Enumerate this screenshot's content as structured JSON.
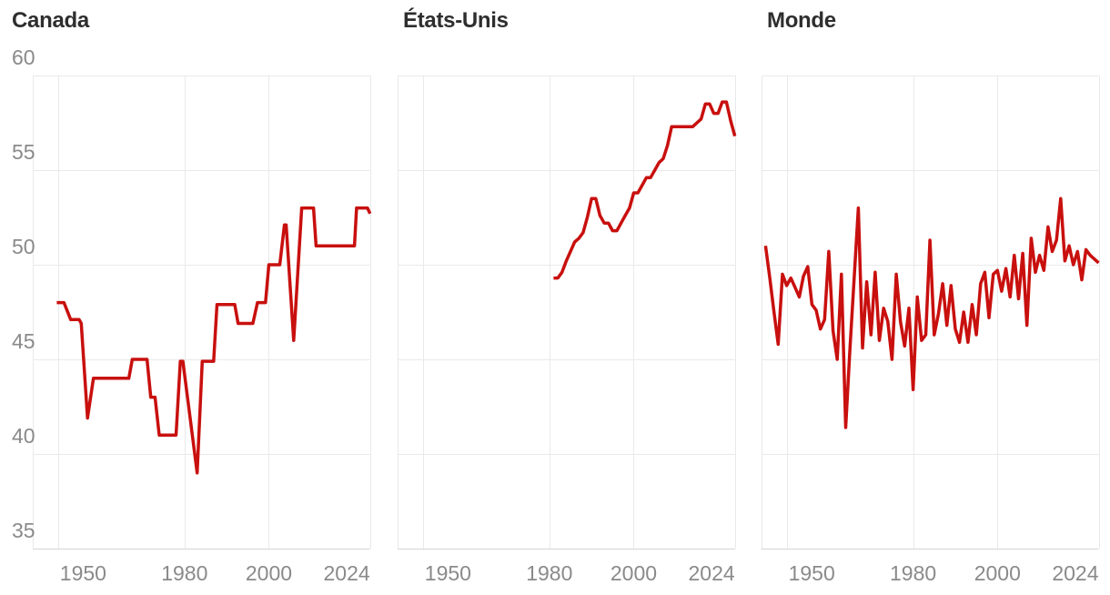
{
  "style": {
    "background": "#ffffff",
    "line_color": "#c8100e",
    "grid_color": "#e9e9e9",
    "axis_line_color": "#d5d5d5",
    "tick_label_color": "#8a8a8a",
    "title_color": "#2e2e2e"
  },
  "axes": {
    "x_domain": [
      1944,
      2024
    ],
    "y_domain": [
      35,
      60
    ],
    "y_ticks": [
      60,
      55,
      50,
      45,
      40,
      35
    ],
    "x_ticks": [
      1950,
      1980,
      2000,
      2024
    ],
    "grid": true,
    "legend": "none"
  },
  "chart_data": [
    {
      "type": "line",
      "title": "Canada",
      "ylim": [
        35,
        60
      ],
      "xlim": [
        1944,
        2024
      ],
      "points": [
        [
          1949.7,
          48.0
        ],
        [
          1951.4,
          48.0
        ],
        [
          1953,
          47.1
        ],
        [
          1955,
          47.1
        ],
        [
          1955.5,
          46.9
        ],
        [
          1957,
          41.9
        ],
        [
          1958.4,
          44.0
        ],
        [
          1966.8,
          44.0
        ],
        [
          1967.6,
          45.0
        ],
        [
          1971.1,
          45.0
        ],
        [
          1972,
          43.0
        ],
        [
          1973,
          43.0
        ],
        [
          1974,
          41.0
        ],
        [
          1978,
          41.0
        ],
        [
          1979,
          44.9
        ],
        [
          1979.6,
          44.9
        ],
        [
          1983,
          39.0
        ],
        [
          1984.2,
          44.9
        ],
        [
          1986.9,
          44.9
        ],
        [
          1987.7,
          47.9
        ],
        [
          1991.9,
          47.9
        ],
        [
          1992.7,
          46.9
        ],
        [
          1996.2,
          46.9
        ],
        [
          1997.3,
          48.0
        ],
        [
          1999.2,
          48.0
        ],
        [
          2000,
          50.0
        ],
        [
          2002.6,
          50.0
        ],
        [
          2003.7,
          52.1
        ],
        [
          2004.1,
          52.1
        ],
        [
          2005.9,
          46.0
        ],
        [
          2007.8,
          53.0
        ],
        [
          2010.6,
          53.0
        ],
        [
          2011.2,
          51.0
        ],
        [
          2020.3,
          51.0
        ],
        [
          2020.8,
          53.0
        ],
        [
          2023.4,
          53.0
        ],
        [
          2024,
          52.7
        ]
      ]
    },
    {
      "type": "line",
      "title": "États-Unis",
      "ylim": [
        35,
        60
      ],
      "xlim": [
        1944,
        2024
      ],
      "points": [
        [
          1981,
          49.3
        ],
        [
          1982,
          49.3
        ],
        [
          1983,
          49.6
        ],
        [
          1984,
          50.2
        ],
        [
          1985,
          50.7
        ],
        [
          1986,
          51.2
        ],
        [
          1987,
          51.4
        ],
        [
          1988,
          51.7
        ],
        [
          1989,
          52.5
        ],
        [
          1990,
          53.5
        ],
        [
          1991,
          53.5
        ],
        [
          1992,
          52.6
        ],
        [
          1993,
          52.2
        ],
        [
          1994,
          52.2
        ],
        [
          1995,
          51.8
        ],
        [
          1996,
          51.8
        ],
        [
          1997,
          52.2
        ],
        [
          1998,
          52.6
        ],
        [
          1999,
          53.0
        ],
        [
          2000,
          53.8
        ],
        [
          2001,
          53.8
        ],
        [
          2002,
          54.2
        ],
        [
          2003,
          54.6
        ],
        [
          2004,
          54.6
        ],
        [
          2005,
          55.0
        ],
        [
          2006,
          55.4
        ],
        [
          2007,
          55.6
        ],
        [
          2008,
          56.3
        ],
        [
          2009,
          57.3
        ],
        [
          2010,
          57.3
        ],
        [
          2011,
          57.3
        ],
        [
          2012,
          57.3
        ],
        [
          2013,
          57.3
        ],
        [
          2014,
          57.3
        ],
        [
          2015,
          57.5
        ],
        [
          2016,
          57.7
        ],
        [
          2017,
          58.5
        ],
        [
          2018,
          58.5
        ],
        [
          2019,
          58.0
        ],
        [
          2020,
          58.0
        ],
        [
          2021,
          58.6
        ],
        [
          2022,
          58.6
        ],
        [
          2023,
          57.6
        ],
        [
          2024,
          56.8
        ]
      ]
    },
    {
      "type": "line",
      "title": "Monde",
      "ylim": [
        35,
        60
      ],
      "xlim": [
        1944,
        2024
      ],
      "points": [
        [
          1945,
          51.0
        ],
        [
          1946,
          49.3
        ],
        [
          1947,
          47.5
        ],
        [
          1948,
          45.8
        ],
        [
          1949,
          49.5
        ],
        [
          1950,
          48.9
        ],
        [
          1951,
          49.3
        ],
        [
          1952,
          48.8
        ],
        [
          1953,
          48.3
        ],
        [
          1954,
          49.4
        ],
        [
          1955,
          49.9
        ],
        [
          1956,
          47.9
        ],
        [
          1957,
          47.6
        ],
        [
          1958,
          46.6
        ],
        [
          1959,
          47.1
        ],
        [
          1960,
          50.7
        ],
        [
          1961,
          46.5
        ],
        [
          1962,
          45.0
        ],
        [
          1963,
          49.5
        ],
        [
          1964,
          41.4
        ],
        [
          1965,
          45.5
        ],
        [
          1966,
          49.2
        ],
        [
          1967,
          53.0
        ],
        [
          1968,
          45.6
        ],
        [
          1969,
          49.1
        ],
        [
          1970,
          46.3
        ],
        [
          1971,
          49.6
        ],
        [
          1972,
          46.0
        ],
        [
          1973,
          47.7
        ],
        [
          1974,
          47.0
        ],
        [
          1975,
          45.0
        ],
        [
          1976,
          49.5
        ],
        [
          1977,
          47.0
        ],
        [
          1978,
          45.7
        ],
        [
          1979,
          47.7
        ],
        [
          1980,
          43.4
        ],
        [
          1981,
          48.3
        ],
        [
          1982,
          46.0
        ],
        [
          1983,
          46.3
        ],
        [
          1984,
          51.3
        ],
        [
          1985,
          46.3
        ],
        [
          1986,
          47.4
        ],
        [
          1987,
          49.0
        ],
        [
          1988,
          46.8
        ],
        [
          1989,
          48.9
        ],
        [
          1990,
          46.6
        ],
        [
          1991,
          45.9
        ],
        [
          1992,
          47.5
        ],
        [
          1993,
          45.9
        ],
        [
          1994,
          47.9
        ],
        [
          1995,
          46.3
        ],
        [
          1996,
          49.0
        ],
        [
          1997,
          49.6
        ],
        [
          1998,
          47.2
        ],
        [
          1999,
          49.5
        ],
        [
          2000,
          49.7
        ],
        [
          2001,
          48.6
        ],
        [
          2002,
          49.8
        ],
        [
          2003,
          48.3
        ],
        [
          2004,
          50.5
        ],
        [
          2005,
          48.2
        ],
        [
          2006,
          50.6
        ],
        [
          2007,
          46.8
        ],
        [
          2008,
          51.4
        ],
        [
          2009,
          49.6
        ],
        [
          2010,
          50.5
        ],
        [
          2011,
          49.7
        ],
        [
          2012,
          52.0
        ],
        [
          2013,
          50.7
        ],
        [
          2014,
          51.3
        ],
        [
          2015,
          53.5
        ],
        [
          2016,
          50.2
        ],
        [
          2017,
          51.0
        ],
        [
          2018,
          50.0
        ],
        [
          2019,
          50.7
        ],
        [
          2020,
          49.2
        ],
        [
          2021,
          50.8
        ],
        [
          2022,
          50.5
        ],
        [
          2023,
          50.3
        ],
        [
          2024,
          50.1
        ]
      ]
    }
  ]
}
